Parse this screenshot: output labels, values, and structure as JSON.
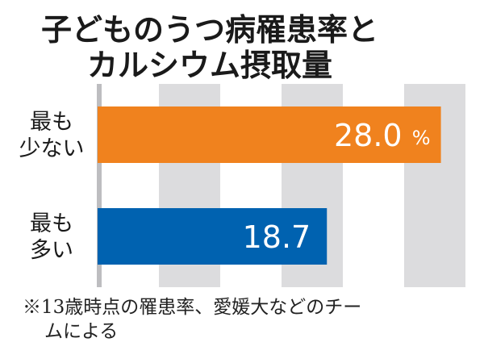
{
  "chart_data": {
    "type": "bar",
    "orientation": "horizontal",
    "title": [
      "子どものうつ病罹患率と",
      "カルシウム摂取量"
    ],
    "categories": [
      "最も少ない",
      "最も多い"
    ],
    "category_lines": [
      [
        "最も",
        "少ない"
      ],
      [
        "最も",
        "多い"
      ]
    ],
    "values": [
      28.0,
      18.7
    ],
    "data_labels": [
      "28.0",
      "18.7"
    ],
    "unit_label": "%",
    "colors": [
      "#F0821E",
      "#0062B0"
    ],
    "band_color": "#DCDCDE",
    "xlim": [
      0,
      30
    ],
    "band_interval": 5,
    "grid": true,
    "footnote": [
      "※13歳時点の罹患率、愛媛大などのチー",
      "ムによる"
    ]
  }
}
